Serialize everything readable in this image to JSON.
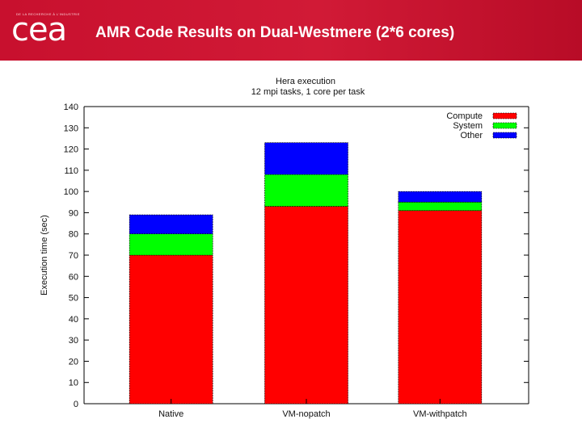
{
  "header": {
    "logo_tagline": "DE LA RECHERCHE À L'INDUSTRIE",
    "logo_text": "cea",
    "title": "AMR Code Results on Dual-Westmere (2*6 cores)"
  },
  "colors": {
    "header_bg": "#c8102e",
    "compute": "#ff0000",
    "system": "#00ff00",
    "other": "#0000ff"
  },
  "chart_data": {
    "type": "bar",
    "stacked": true,
    "title": "Hera execution",
    "subtitle": "12 mpi tasks, 1 core per task",
    "xlabel": "",
    "ylabel": "Execution time (sec)",
    "ylim": [
      0,
      140
    ],
    "yticks": [
      0,
      10,
      20,
      30,
      40,
      50,
      60,
      70,
      80,
      90,
      100,
      110,
      120,
      130,
      140
    ],
    "categories": [
      "Native",
      "VM-nopatch",
      "VM-withpatch"
    ],
    "series": [
      {
        "name": "Compute",
        "color": "#ff0000",
        "values": [
          70,
          93,
          91
        ]
      },
      {
        "name": "System",
        "color": "#00ff00",
        "values": [
          10,
          15,
          4
        ]
      },
      {
        "name": "Other",
        "color": "#0000ff",
        "values": [
          9,
          15,
          5
        ]
      }
    ],
    "legend_position": "top-right",
    "grid": false
  }
}
